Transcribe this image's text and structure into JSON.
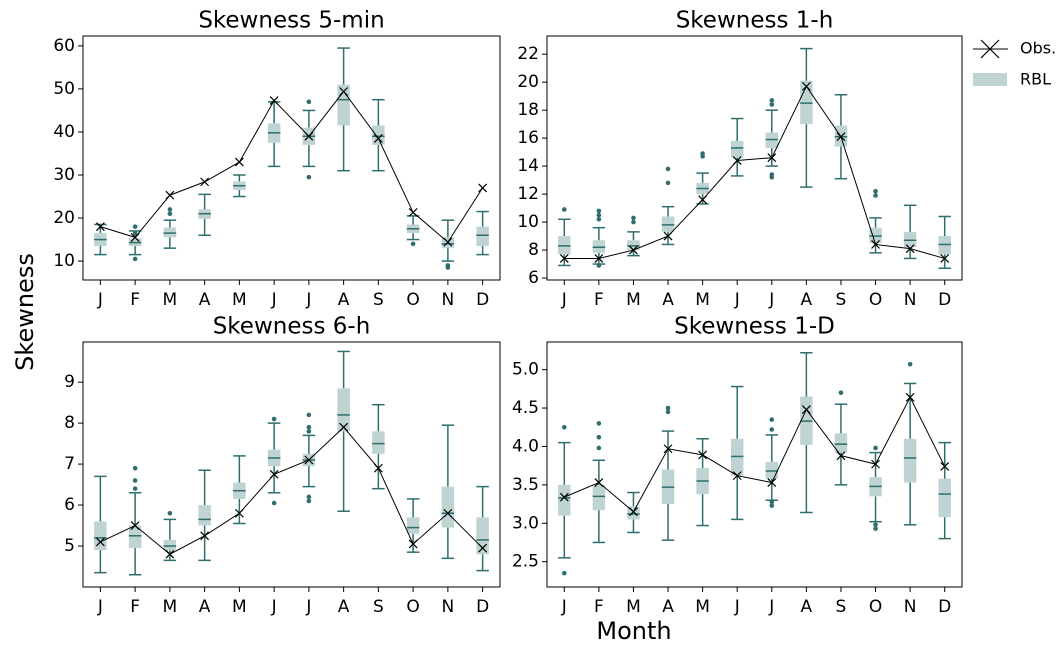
{
  "ylabel": "Skewness",
  "xlabel": "Month",
  "chart_data": [
    {
      "type": "box",
      "title": "Skewness 5-min",
      "categories": [
        "J",
        "F",
        "M",
        "A",
        "M",
        "J",
        "J",
        "A",
        "S",
        "O",
        "N",
        "D"
      ],
      "ylim": [
        5.6,
        62.3
      ],
      "yticks": [
        10,
        20,
        30,
        40,
        50,
        60
      ],
      "box": {
        "name": "RBL",
        "color": "#bfd3d3",
        "edge": "#2e6e6e",
        "whislo": [
          11.5,
          11.5,
          13,
          16,
          25,
          32,
          32,
          31,
          31,
          15,
          10,
          11.5
        ],
        "q1": [
          13.5,
          13.5,
          15.5,
          19.8,
          26.5,
          37.5,
          37,
          41.5,
          37,
          16.5,
          13,
          13.5
        ],
        "med": [
          15,
          14.3,
          16.5,
          21,
          27.5,
          39.8,
          39,
          47.5,
          39,
          17.5,
          14,
          16
        ],
        "q3": [
          16.5,
          15.3,
          17.8,
          22,
          28.5,
          42,
          41,
          51,
          41.5,
          18.5,
          15.5,
          18
        ],
        "whishi": [
          18.5,
          17,
          19.5,
          25.5,
          30,
          47,
          45,
          59.5,
          47.5,
          20.5,
          19.5,
          21.5
        ],
        "fliers": [
          [],
          [
            10.5,
            16.5,
            18
          ],
          [
            21,
            22
          ],
          [],
          [],
          [],
          [
            29.5,
            47
          ],
          [],
          [],
          [
            14
          ],
          [
            8.5,
            9
          ],
          []
        ]
      },
      "series": [
        {
          "name": "Obs.",
          "color": "#000000",
          "values": [
            18,
            15.5,
            25.3,
            28.4,
            33,
            47.3,
            39,
            49.4,
            38.5,
            21.3,
            14.4,
            27
          ]
        }
      ]
    },
    {
      "type": "box",
      "title": "Skewness 1-h",
      "categories": [
        "J",
        "F",
        "M",
        "A",
        "M",
        "J",
        "J",
        "A",
        "S",
        "O",
        "N",
        "D"
      ],
      "ylim": [
        5.86,
        23.3
      ],
      "yticks": [
        6,
        8,
        10,
        12,
        14,
        16,
        18,
        20,
        22
      ],
      "box": {
        "name": "RBL",
        "color": "#bfd3d3",
        "edge": "#2e6e6e",
        "whislo": [
          6.9,
          7.0,
          7.6,
          8.4,
          11.3,
          13.3,
          14.0,
          12.5,
          13.1,
          7.8,
          7.4,
          6.7
        ],
        "q1": [
          7.7,
          7.8,
          8.0,
          9.3,
          12.0,
          14.6,
          15.3,
          17.0,
          15.4,
          8.5,
          8.2,
          7.7
        ],
        "med": [
          8.3,
          8.2,
          8.3,
          9.8,
          12.4,
          15.3,
          15.9,
          18.5,
          16.1,
          9.0,
          8.7,
          8.4
        ],
        "q3": [
          9.0,
          8.7,
          8.7,
          10.4,
          12.8,
          15.8,
          16.4,
          20.1,
          16.9,
          9.6,
          9.3,
          9.0
        ],
        "whishi": [
          10.2,
          9.6,
          9.3,
          11.1,
          13.5,
          17.4,
          18.0,
          22.4,
          19.1,
          10.3,
          11.2,
          10.4
        ],
        "fliers": [
          [
            10.9
          ],
          [
            6.9,
            10.2,
            10.5,
            10.8
          ],
          [
            10.0,
            10.3
          ],
          [
            12.8,
            13.8
          ],
          [
            14.7,
            14.9
          ],
          [],
          [
            13.2,
            13.4,
            18.4,
            18.7
          ],
          [],
          [],
          [
            11.9,
            12.2
          ],
          [],
          []
        ]
      },
      "series": [
        {
          "name": "Obs.",
          "color": "#000000",
          "values": [
            7.4,
            7.4,
            8,
            9,
            11.6,
            14.4,
            14.6,
            19.7,
            16.1,
            8.4,
            8.1,
            7.4
          ]
        }
      ]
    },
    {
      "type": "box",
      "title": "Skewness 6-h",
      "categories": [
        "J",
        "F",
        "M",
        "A",
        "M",
        "J",
        "J",
        "A",
        "S",
        "O",
        "N",
        "D"
      ],
      "ylim": [
        4.0,
        9.98
      ],
      "yticks": [
        5,
        6,
        7,
        8,
        9
      ],
      "box": {
        "name": "RBL",
        "color": "#bfd3d3",
        "edge": "#2e6e6e",
        "whislo": [
          4.35,
          4.3,
          4.65,
          4.65,
          5.55,
          6.3,
          6.45,
          5.85,
          6.4,
          4.85,
          4.7,
          4.4
        ],
        "q1": [
          4.9,
          4.95,
          4.9,
          5.5,
          6.15,
          6.95,
          6.95,
          7.8,
          7.25,
          5.3,
          5.45,
          4.8
        ],
        "med": [
          5.2,
          5.25,
          5.0,
          5.65,
          6.35,
          7.15,
          7.1,
          8.2,
          7.5,
          5.45,
          5.8,
          5.15
        ],
        "q3": [
          5.6,
          5.5,
          5.15,
          6.0,
          6.55,
          7.35,
          7.25,
          8.85,
          7.8,
          5.7,
          6.45,
          5.7
        ],
        "whishi": [
          6.7,
          6.3,
          5.65,
          6.85,
          7.2,
          8.0,
          7.7,
          9.75,
          8.45,
          6.15,
          7.95,
          6.45
        ],
        "fliers": [
          [],
          [
            6.4,
            6.6,
            6.9
          ],
          [
            5.8
          ],
          [],
          [],
          [
            6.05,
            8.1
          ],
          [
            6.1,
            6.2,
            7.8,
            7.9,
            8.2
          ],
          [],
          [],
          [],
          [],
          []
        ]
      },
      "series": [
        {
          "name": "Obs.",
          "color": "#000000",
          "values": [
            5.1,
            5.5,
            4.8,
            5.25,
            5.8,
            6.75,
            7.1,
            7.9,
            6.9,
            5.05,
            5.8,
            4.95
          ]
        }
      ]
    },
    {
      "type": "box",
      "title": "Skewness 1-D",
      "categories": [
        "J",
        "F",
        "M",
        "A",
        "M",
        "J",
        "J",
        "A",
        "S",
        "O",
        "N",
        "D"
      ],
      "ylim": [
        2.17,
        5.36
      ],
      "yticks": [
        2.5,
        {
          "value": 3,
          "label": "3.0"
        },
        3.5,
        {
          "value": 4,
          "label": "4.0"
        },
        4.5,
        {
          "value": 5,
          "label": "5.0"
        }
      ],
      "box": {
        "name": "RBL",
        "color": "#bfd3d3",
        "edge": "#2e6e6e",
        "whislo": [
          2.55,
          2.75,
          2.88,
          2.78,
          2.97,
          3.05,
          3.3,
          3.14,
          3.5,
          3.02,
          2.98,
          2.8
        ],
        "q1": [
          3.1,
          3.17,
          3.05,
          3.25,
          3.38,
          3.62,
          3.58,
          4.02,
          3.92,
          3.35,
          3.53,
          3.08
        ],
        "med": [
          3.33,
          3.35,
          3.12,
          3.47,
          3.55,
          3.87,
          3.68,
          4.33,
          4.03,
          3.48,
          3.85,
          3.38
        ],
        "q3": [
          3.5,
          3.5,
          3.22,
          3.7,
          3.72,
          4.1,
          3.8,
          4.65,
          4.17,
          3.6,
          4.1,
          3.58
        ],
        "whishi": [
          4.05,
          3.82,
          3.4,
          4.2,
          4.1,
          4.78,
          4.15,
          5.22,
          4.55,
          3.92,
          4.82,
          4.05
        ],
        "fliers": [
          [
            2.35,
            4.25
          ],
          [
            3.98,
            4.12,
            4.3
          ],
          [],
          [
            4.45,
            4.5
          ],
          [],
          [],
          [
            3.23,
            3.28,
            4.22,
            4.35
          ],
          [],
          [
            4.7
          ],
          [
            2.93,
            2.98,
            3.98
          ],
          [
            5.07
          ],
          []
        ]
      },
      "series": [
        {
          "name": "Obs.",
          "color": "#000000",
          "values": [
            3.34,
            3.53,
            3.15,
            3.97,
            3.89,
            3.62,
            3.53,
            4.48,
            3.88,
            3.77,
            4.64,
            3.74
          ]
        }
      ]
    }
  ]
}
